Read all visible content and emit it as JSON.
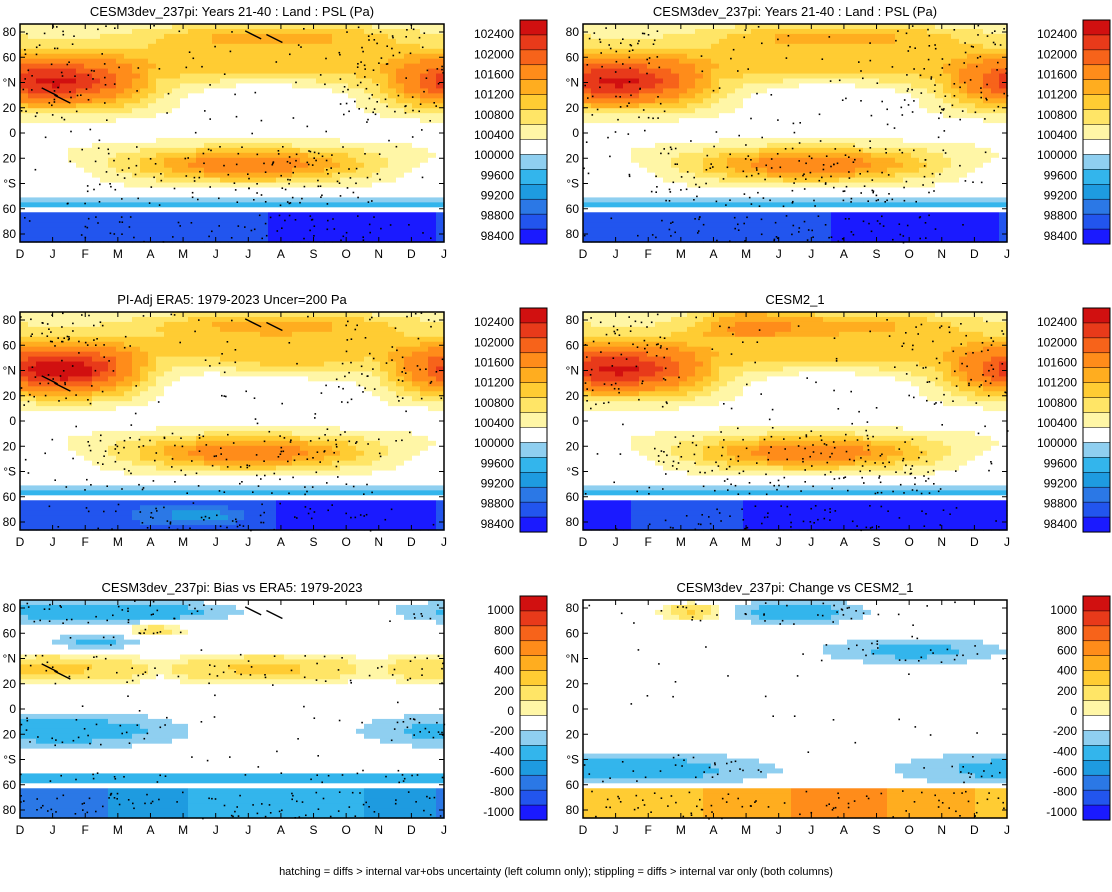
{
  "footer_note": "hatching = diffs > internal var+obs uncertainty (left column only); stippling = diffs > internal var only (both columns)",
  "colors": {
    "psl_scale": [
      "#1a1aff",
      "#2255ee",
      "#2b78e6",
      "#1e9be0",
      "#33b5ec",
      "#8fcff0",
      "#ffffff",
      "#fff6a6",
      "#ffe566",
      "#ffcc33",
      "#ffad1f",
      "#ff8c1a",
      "#f7631a",
      "#e83a1a",
      "#d11010"
    ],
    "diff_scale": [
      "#1a1aff",
      "#2255ee",
      "#2b78e6",
      "#1e9be0",
      "#33b5ec",
      "#8fcff0",
      "#ffffff",
      "#fff6a6",
      "#ffe566",
      "#ffcc33",
      "#ffad1f",
      "#ff8c1a",
      "#f7631a",
      "#e83a1a",
      "#d11010"
    ],
    "diff_white_index": 6
  },
  "chart_data": [
    {
      "type": "heatmap",
      "id": "p1",
      "title": "CESM3dev_237pi: Years 21-40 : Land : PSL (Pa)",
      "x_tick_labels": [
        "D",
        "J",
        "F",
        "M",
        "A",
        "M",
        "J",
        "J",
        "A",
        "S",
        "O",
        "N",
        "D",
        "J"
      ],
      "y_tick_labels": [
        "80",
        "60",
        "°N",
        "20",
        "0",
        "20",
        "°S",
        "60",
        "80"
      ],
      "colorbar_labels": [
        "102400",
        "102000",
        "101600",
        "101200",
        "100800",
        "100400",
        "100000",
        "99600",
        "99200",
        "98800",
        "98400"
      ],
      "field": "psl",
      "variant": "model",
      "hatching": true
    },
    {
      "type": "heatmap",
      "id": "p2",
      "title": "CESM3dev_237pi: Years 21-40 : Land : PSL (Pa)",
      "x_tick_labels": [
        "D",
        "J",
        "F",
        "M",
        "A",
        "M",
        "J",
        "J",
        "A",
        "S",
        "O",
        "N",
        "D",
        "J"
      ],
      "y_tick_labels": [
        "80",
        "60",
        "°N",
        "20",
        "0",
        "20",
        "°S",
        "60",
        "80"
      ],
      "colorbar_labels": [
        "102400",
        "102000",
        "101600",
        "101200",
        "100800",
        "100400",
        "100000",
        "99600",
        "99200",
        "98800",
        "98400"
      ],
      "field": "psl",
      "variant": "model",
      "hatching": false
    },
    {
      "type": "heatmap",
      "id": "p3",
      "title": "PI-Adj ERA5: 1979-2023 Uncer=200 Pa",
      "x_tick_labels": [
        "D",
        "J",
        "F",
        "M",
        "A",
        "M",
        "J",
        "J",
        "A",
        "S",
        "O",
        "N",
        "D",
        "J"
      ],
      "y_tick_labels": [
        "80",
        "60",
        "°N",
        "20",
        "0",
        "20",
        "°S",
        "60",
        "80"
      ],
      "colorbar_labels": [
        "102400",
        "102000",
        "101600",
        "101200",
        "100800",
        "100400",
        "100000",
        "99600",
        "99200",
        "98800",
        "98400"
      ],
      "field": "psl",
      "variant": "obs",
      "hatching": true
    },
    {
      "type": "heatmap",
      "id": "p4",
      "title": "CESM2_1",
      "x_tick_labels": [
        "D",
        "J",
        "F",
        "M",
        "A",
        "M",
        "J",
        "J",
        "A",
        "S",
        "O",
        "N",
        "D",
        "J"
      ],
      "y_tick_labels": [
        "80",
        "60",
        "°N",
        "20",
        "0",
        "20",
        "°S",
        "60",
        "80"
      ],
      "colorbar_labels": [
        "102400",
        "102000",
        "101600",
        "101200",
        "100800",
        "100400",
        "100000",
        "99600",
        "99200",
        "98800",
        "98400"
      ],
      "field": "psl",
      "variant": "cesm2",
      "hatching": false
    },
    {
      "type": "heatmap",
      "id": "p5",
      "title": "CESM3dev_237pi: Bias vs ERA5: 1979-2023",
      "x_tick_labels": [
        "D",
        "J",
        "F",
        "M",
        "A",
        "M",
        "J",
        "J",
        "A",
        "S",
        "O",
        "N",
        "D",
        "J"
      ],
      "y_tick_labels": [
        "80",
        "60",
        "°N",
        "20",
        "0",
        "20",
        "°S",
        "60",
        "80"
      ],
      "colorbar_labels": [
        "1000",
        "800",
        "600",
        "400",
        "200",
        "0",
        "-200",
        "-400",
        "-600",
        "-800",
        "-1000"
      ],
      "field": "diff",
      "variant": "bias",
      "hatching": true
    },
    {
      "type": "heatmap",
      "id": "p6",
      "title": "CESM3dev_237pi: Change vs CESM2_1",
      "x_tick_labels": [
        "D",
        "J",
        "F",
        "M",
        "A",
        "M",
        "J",
        "J",
        "A",
        "S",
        "O",
        "N",
        "D",
        "J"
      ],
      "y_tick_labels": [
        "80",
        "60",
        "°N",
        "20",
        "0",
        "20",
        "°S",
        "60",
        "80"
      ],
      "colorbar_labels": [
        "1000",
        "800",
        "600",
        "400",
        "200",
        "0",
        "-200",
        "-400",
        "-600",
        "-800",
        "-1000"
      ],
      "field": "diff",
      "variant": "change",
      "hatching": false
    }
  ]
}
